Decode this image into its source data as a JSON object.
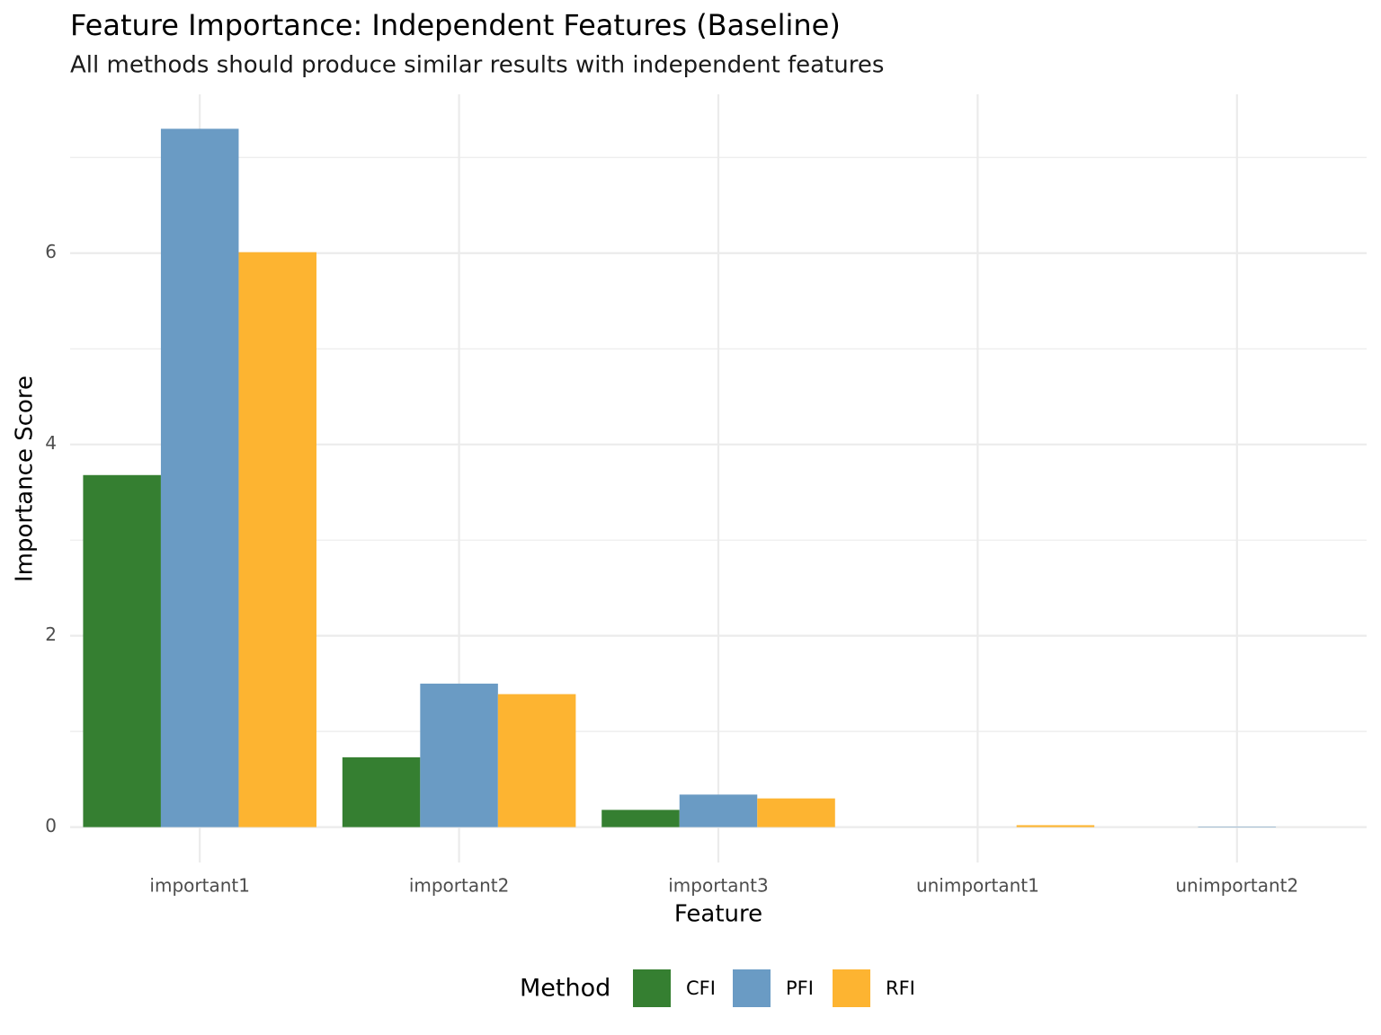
{
  "chart_data": {
    "type": "bar",
    "title": "Feature Importance: Independent Features (Baseline)",
    "subtitle": "All methods should produce similar results with independent features",
    "x_label": "Feature",
    "y_label": "Importance Score",
    "legend_title": "Method",
    "legend_position": "bottom",
    "categories": [
      "important1",
      "important2",
      "important3",
      "unimportant1",
      "unimportant2"
    ],
    "series": [
      {
        "name": "CFI",
        "color": "#357f31",
        "values": [
          3.68,
          0.73,
          0.18,
          0.0,
          0.0
        ]
      },
      {
        "name": "PFI",
        "color": "#6a9bc4",
        "values": [
          7.3,
          1.5,
          0.34,
          0.0,
          0.005
        ]
      },
      {
        "name": "RFI",
        "color": "#fdb431",
        "values": [
          6.01,
          1.39,
          0.3,
          0.02,
          0.0
        ]
      }
    ],
    "ylim": [
      -0.37,
      7.66
    ],
    "yticks": [
      0,
      2,
      4,
      6
    ],
    "y_minor_grid": [
      1,
      3,
      5,
      7
    ],
    "grid": true
  }
}
